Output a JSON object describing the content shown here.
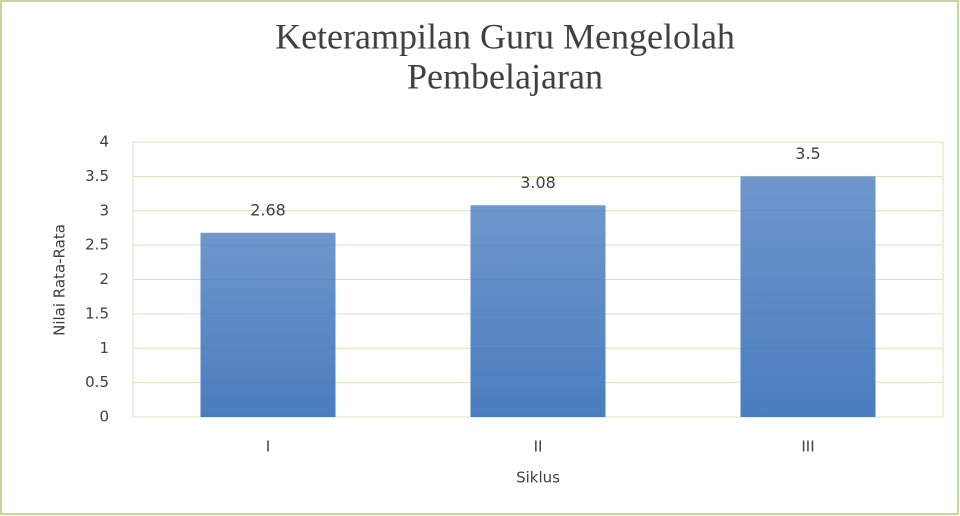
{
  "chart_data": {
    "type": "bar",
    "title": [
      "Keterampilan  Guru Mengelolah",
      "Pembelajaran"
    ],
    "categories": [
      "I",
      "II",
      "III"
    ],
    "values": [
      2.68,
      3.08,
      3.5
    ],
    "color": "#4a7dbf",
    "xlabel": "Siklus",
    "ylabel": "Nilai Rata-Rata",
    "ylim": [
      0,
      4
    ],
    "yticks": [
      0,
      0.5,
      1,
      1.5,
      2,
      2.5,
      3,
      3.5,
      4
    ],
    "grid": true
  }
}
